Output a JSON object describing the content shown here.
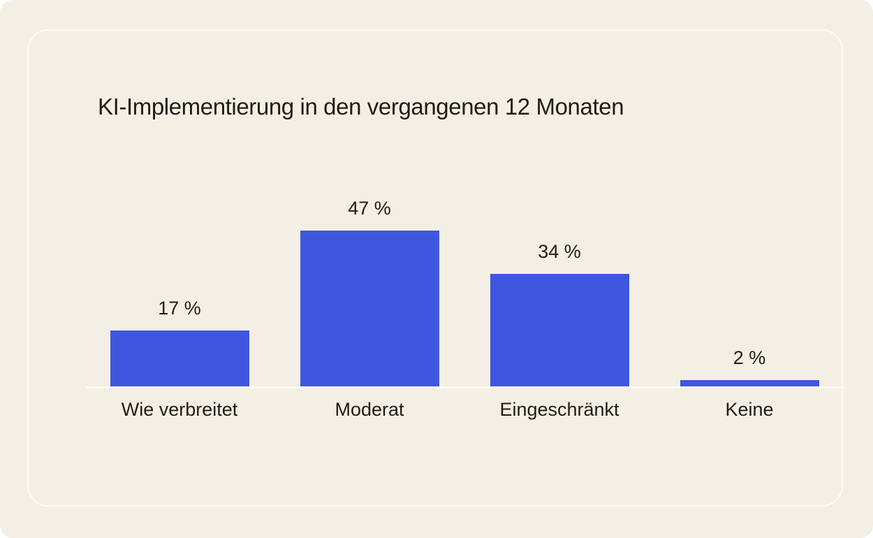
{
  "page": {
    "background_color": "#f3efe4",
    "card_border_color": "#fdfcf6",
    "text_color": "#1e1d19"
  },
  "chart_data": {
    "type": "bar",
    "title": "KI-Implementierung in den vergangenen 12 Monaten",
    "categories": [
      "Wie verbreitet",
      "Moderat",
      "Eingeschränkt",
      "Keine"
    ],
    "values": [
      17,
      47,
      34,
      2
    ],
    "value_labels": [
      "17 %",
      "47 %",
      "34 %",
      "2 %"
    ],
    "unit": "%",
    "bar_color": "#4156df",
    "axis_line_color": "#fdfcf6",
    "ylim": [
      0,
      50
    ],
    "grid": false,
    "legend": false,
    "value_label_position": "above-bar",
    "category_label_position": "below-axis"
  }
}
